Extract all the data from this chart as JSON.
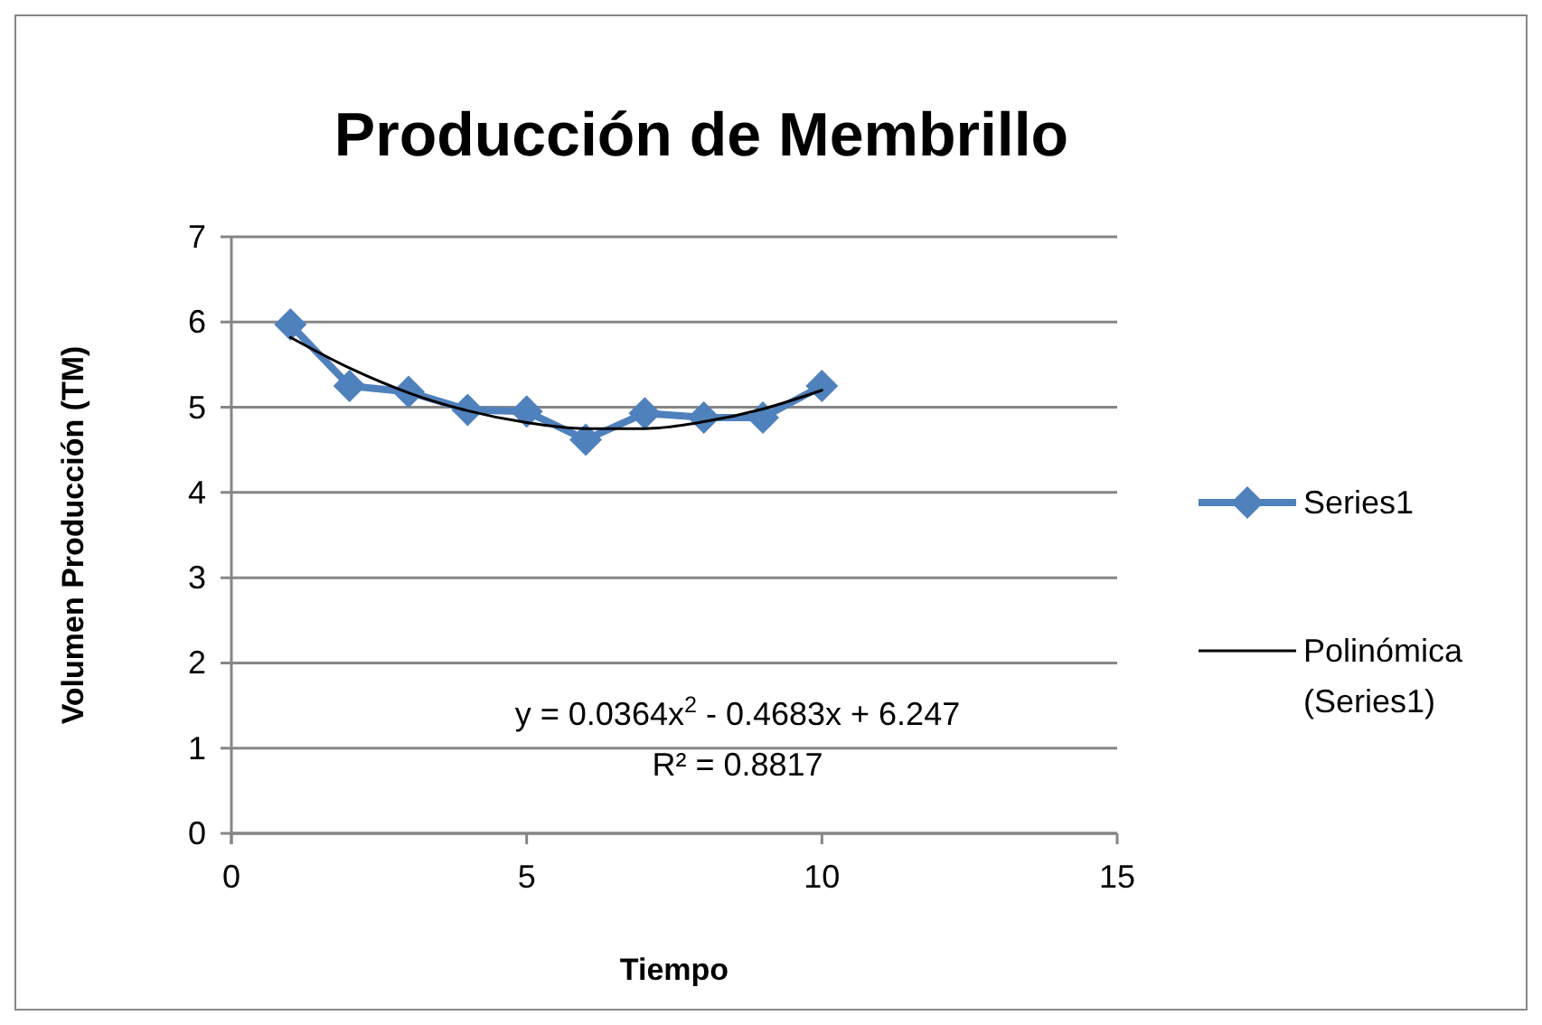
{
  "chart_data": {
    "type": "line",
    "title": "Producción de Membrillo",
    "xlabel": "Tiempo",
    "ylabel": "Volumen Producción (TM)",
    "x": [
      1,
      2,
      3,
      4,
      5,
      6,
      7,
      8,
      9,
      10
    ],
    "series": [
      {
        "name": "Series1",
        "color": "#4f81bd",
        "values": [
          5.97,
          5.25,
          5.18,
          4.97,
          4.95,
          4.62,
          4.93,
          4.88,
          4.88,
          5.25
        ],
        "marker": "diamond"
      },
      {
        "name": "Polinómica (Series1)",
        "type": "line",
        "color": "#000000",
        "x": [
          1,
          2,
          3,
          4,
          5,
          6,
          7,
          8,
          9,
          10
        ],
        "values": [
          5.82,
          5.46,
          5.17,
          4.96,
          4.82,
          4.75,
          4.75,
          4.83,
          4.98,
          5.2
        ],
        "marker": "none"
      }
    ],
    "annotations": [
      "y = 0.0364x$^{2}$ - 0.4683x + 6.247",
      "R² = 0.8817"
    ],
    "xlim": [
      0,
      15
    ],
    "xticks": [
      0,
      5,
      10,
      15
    ],
    "ylim": [
      0,
      7
    ],
    "yticks": [
      0,
      1,
      2,
      3,
      4,
      5,
      6,
      7
    ],
    "grid": "y",
    "legend": "right"
  }
}
